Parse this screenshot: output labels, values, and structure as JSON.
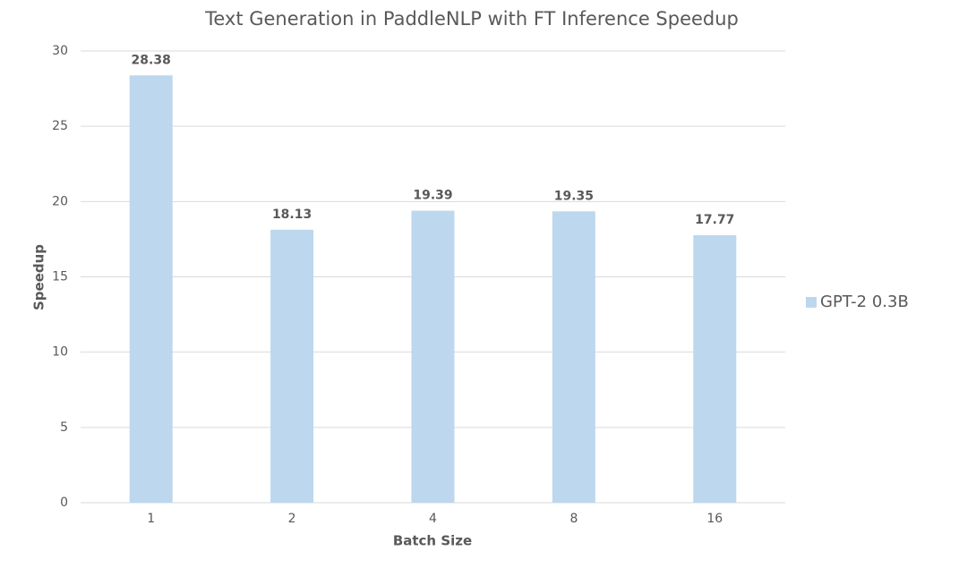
{
  "chart_data": {
    "type": "bar",
    "title": "Text Generation in PaddleNLP with FT Inference Speedup",
    "x_label": "Batch Size",
    "y_label": "Speedup",
    "categories": [
      "1",
      "2",
      "4",
      "8",
      "16"
    ],
    "series": [
      {
        "name": "GPT-2 0.3B",
        "color": "#bdd7ee",
        "values": [
          28.38,
          18.13,
          19.39,
          19.35,
          17.77
        ]
      }
    ],
    "ylim": [
      0,
      30
    ],
    "yticks": [
      0,
      5,
      10,
      15,
      20,
      25,
      30
    ],
    "grid": true,
    "legend": "right",
    "data_labels": true
  }
}
